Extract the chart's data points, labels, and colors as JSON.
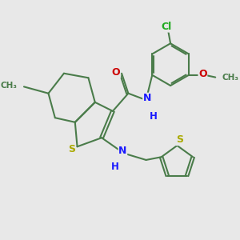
{
  "background_color": "#e8e8e8",
  "bond_color": "#4a7c4a",
  "n_color": "#1a1aff",
  "o_color": "#cc0000",
  "s_color": "#aaaa00",
  "cl_color": "#22aa22",
  "lw": 1.5,
  "figsize": [
    3.0,
    3.0
  ],
  "dpi": 100,
  "xlim": [
    0,
    10
  ],
  "ylim": [
    0,
    10
  ]
}
